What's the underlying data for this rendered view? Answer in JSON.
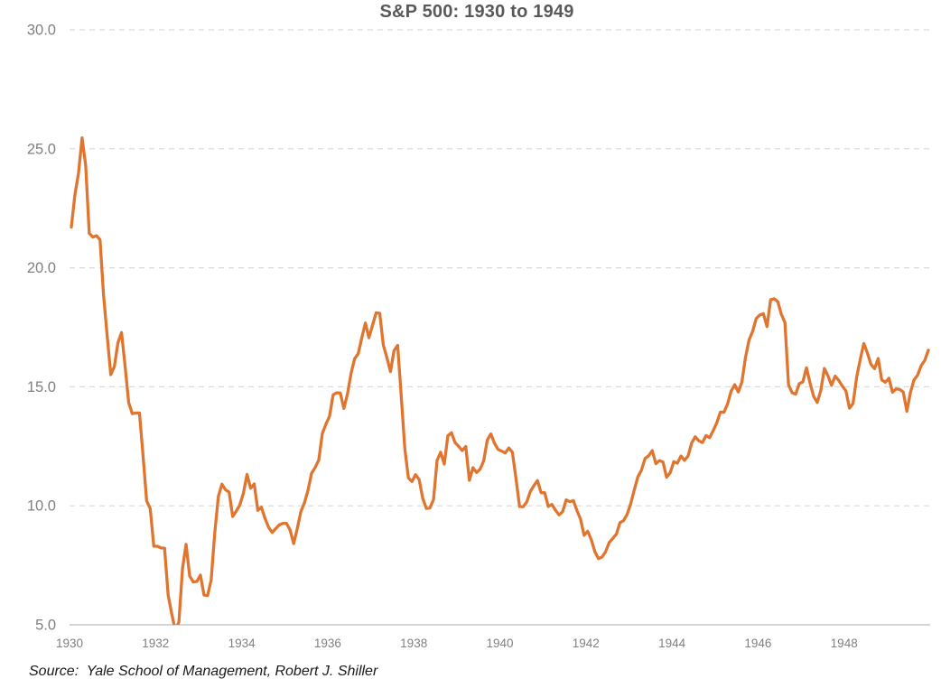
{
  "title": "S&P 500: 1930 to 1949",
  "source_note": "Source:  Yale School of Management, Robert J. Shiller",
  "colors": {
    "line": "#E0752F",
    "gridline": "#D9D9D9",
    "axis_line": "#C9C7C5",
    "tick_label": "#808080",
    "title_text": "#595959",
    "source_text": "#1A1A1A",
    "background": "#FFFFFF"
  },
  "chart_data": {
    "type": "line",
    "title": "S&P 500: 1930 to 1949",
    "xlabel": "",
    "ylabel": "",
    "xlim": [
      1930,
      1950
    ],
    "ylim": [
      5.0,
      30.0
    ],
    "grid": "horizontal-dashed",
    "legend": "none",
    "clipping_note": "values below 5.0 are clipped at the bottom axis (mid-1932 low of 4.77)",
    "y_ticks": [
      {
        "value": 5,
        "label": "5.0"
      },
      {
        "value": 10,
        "label": "10.0"
      },
      {
        "value": 15,
        "label": "15.0"
      },
      {
        "value": 20,
        "label": "20.0"
      },
      {
        "value": 25,
        "label": "25.0"
      },
      {
        "value": 30,
        "label": "30.0"
      }
    ],
    "x_ticks": [
      {
        "year": 1930,
        "label": "1930"
      },
      {
        "year": 1932,
        "label": "1932"
      },
      {
        "year": 1934,
        "label": "1934"
      },
      {
        "year": 1936,
        "label": "1936"
      },
      {
        "year": 1938,
        "label": "1938"
      },
      {
        "year": 1940,
        "label": "1940"
      },
      {
        "year": 1942,
        "label": "1942"
      },
      {
        "year": 1944,
        "label": "1944"
      },
      {
        "year": 1946,
        "label": "1946"
      },
      {
        "year": 1948,
        "label": "1948"
      }
    ],
    "series": [
      {
        "name": "S&P 500 monthly price",
        "frequency": "monthly",
        "start": "1930-01",
        "end": "1949-12",
        "values": [
          21.71,
          23.07,
          23.97,
          25.46,
          24.31,
          21.45,
          21.29,
          21.35,
          21.18,
          18.83,
          17.14,
          15.51,
          15.85,
          16.85,
          17.28,
          15.86,
          14.33,
          13.87,
          13.9,
          13.9,
          12.11,
          10.21,
          9.88,
          8.3,
          8.3,
          8.23,
          8.22,
          6.25,
          5.46,
          4.77,
          5.12,
          7.36,
          8.38,
          7.05,
          6.8,
          6.82,
          7.09,
          6.25,
          6.23,
          6.89,
          8.87,
          10.39,
          10.91,
          10.67,
          10.58,
          9.55,
          9.78,
          10.04,
          10.54,
          11.32,
          10.74,
          10.92,
          9.81,
          9.94,
          9.47,
          9.1,
          8.88,
          9.04,
          9.2,
          9.26,
          9.26,
          8.98,
          8.41,
          9.04,
          9.75,
          10.12,
          10.65,
          11.37,
          11.61,
          11.92,
          13.04,
          13.43,
          13.76,
          14.66,
          14.75,
          14.74,
          14.09,
          14.69,
          15.56,
          16.18,
          16.39,
          17.06,
          17.68,
          17.06,
          17.59,
          18.11,
          18.09,
          16.76,
          16.22,
          15.64,
          16.52,
          16.74,
          14.61,
          12.4,
          11.17,
          11.02,
          11.31,
          11.1,
          10.31,
          9.89,
          9.91,
          10.26,
          11.91,
          12.25,
          11.75,
          12.94,
          13.07,
          12.66,
          12.5,
          12.32,
          12.49,
          11.07,
          11.6,
          11.4,
          11.54,
          11.89,
          12.76,
          13.02,
          12.63,
          12.37,
          12.3,
          12.22,
          12.43,
          12.25,
          11.14,
          9.97,
          9.96,
          10.16,
          10.6,
          10.85,
          11.06,
          10.55,
          10.55,
          9.97,
          10.06,
          9.82,
          9.62,
          9.75,
          10.25,
          10.17,
          10.22,
          9.8,
          9.44,
          8.76,
          8.93,
          8.57,
          8.07,
          7.78,
          7.85,
          8.07,
          8.46,
          8.63,
          8.81,
          9.29,
          9.38,
          9.64,
          10.09,
          10.68,
          11.22,
          11.5,
          11.99,
          12.1,
          12.32,
          11.77,
          11.9,
          11.84,
          11.2,
          11.39,
          11.85,
          11.79,
          12.09,
          11.91,
          12.1,
          12.64,
          12.9,
          12.73,
          12.66,
          12.95,
          12.86,
          13.16,
          13.49,
          13.94,
          13.93,
          14.28,
          14.82,
          15.09,
          14.78,
          15.2,
          16.23,
          16.97,
          17.33,
          17.87,
          18.02,
          18.07,
          17.53,
          18.66,
          18.7,
          18.58,
          18.05,
          17.7,
          15.09,
          14.75,
          14.69,
          15.13,
          15.21,
          15.8,
          15.16,
          14.6,
          14.34,
          14.84,
          15.77,
          15.46,
          15.06,
          15.45,
          15.27,
          15.03,
          14.83,
          14.1,
          14.3,
          15.4,
          16.15,
          16.82,
          16.42,
          15.94,
          15.76,
          16.19,
          15.29,
          15.19,
          15.36,
          14.77,
          14.91,
          14.89,
          14.78,
          13.97,
          14.76,
          15.29,
          15.49,
          15.89,
          16.11,
          16.54
        ]
      }
    ]
  }
}
